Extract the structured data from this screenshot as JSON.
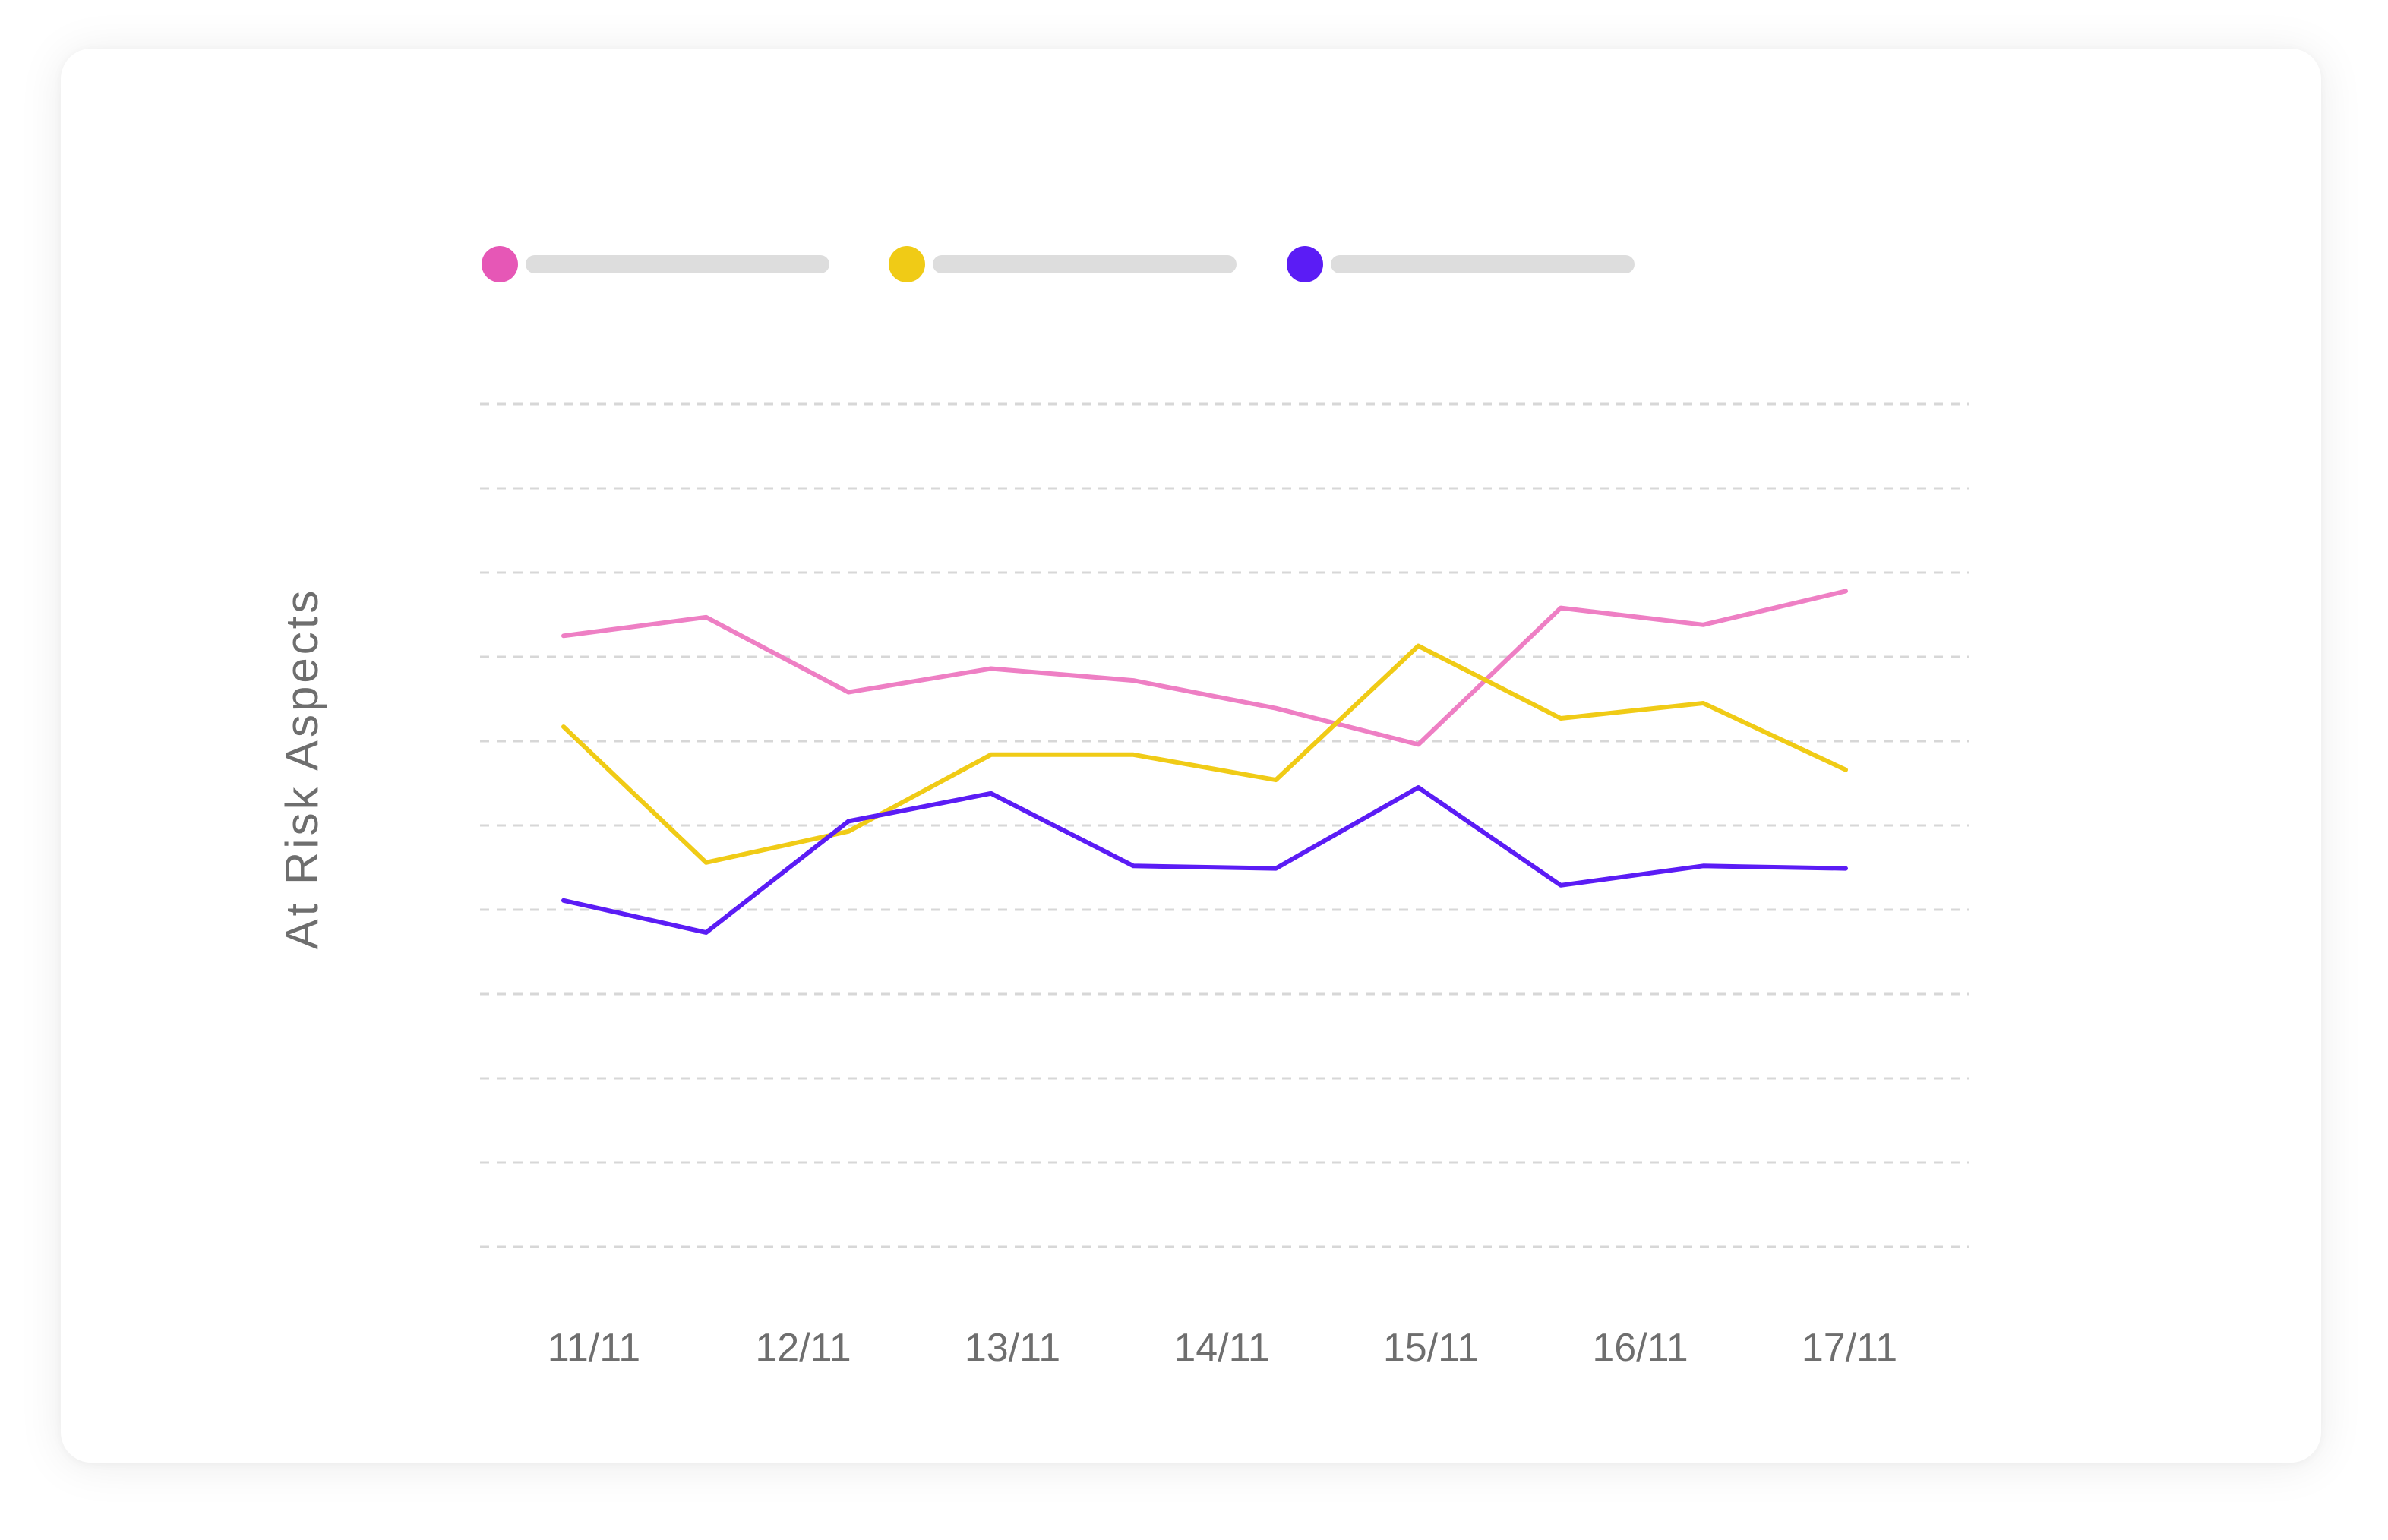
{
  "chart_data": {
    "type": "line",
    "ylabel": "At Risk Aspects",
    "xlabel": "",
    "categories": [
      "11/11",
      "12/11",
      "13/11",
      "14/11",
      "15/11",
      "16/11",
      "17/11"
    ],
    "x": [
      0,
      0.7,
      1.4,
      2.1,
      2.8,
      3.5,
      4.2,
      4.9,
      5.6,
      6.3
    ],
    "ylim": [
      0,
      10
    ],
    "y_gridlines": [
      0,
      1,
      2,
      3,
      4,
      5,
      6,
      7,
      8,
      9,
      10
    ],
    "grid": true,
    "legend_position": "top-left",
    "series": [
      {
        "color": "#ee7fc4",
        "legend_color": "#e657b6",
        "values": [
          7.25,
          7.47,
          6.58,
          6.86,
          6.72,
          6.39,
          5.96,
          7.58,
          7.38,
          7.78
        ]
      },
      {
        "color": "#f0cb16",
        "legend_color": "#f0cb16",
        "values": [
          6.17,
          4.56,
          4.93,
          5.84,
          5.84,
          5.54,
          7.13,
          6.27,
          6.45,
          5.66
        ]
      },
      {
        "color": "#5b1cf5",
        "legend_color": "#5b1cf5",
        "values": [
          4.11,
          3.73,
          5.05,
          5.38,
          4.52,
          4.49,
          5.45,
          4.29,
          4.52,
          4.49
        ]
      }
    ]
  }
}
